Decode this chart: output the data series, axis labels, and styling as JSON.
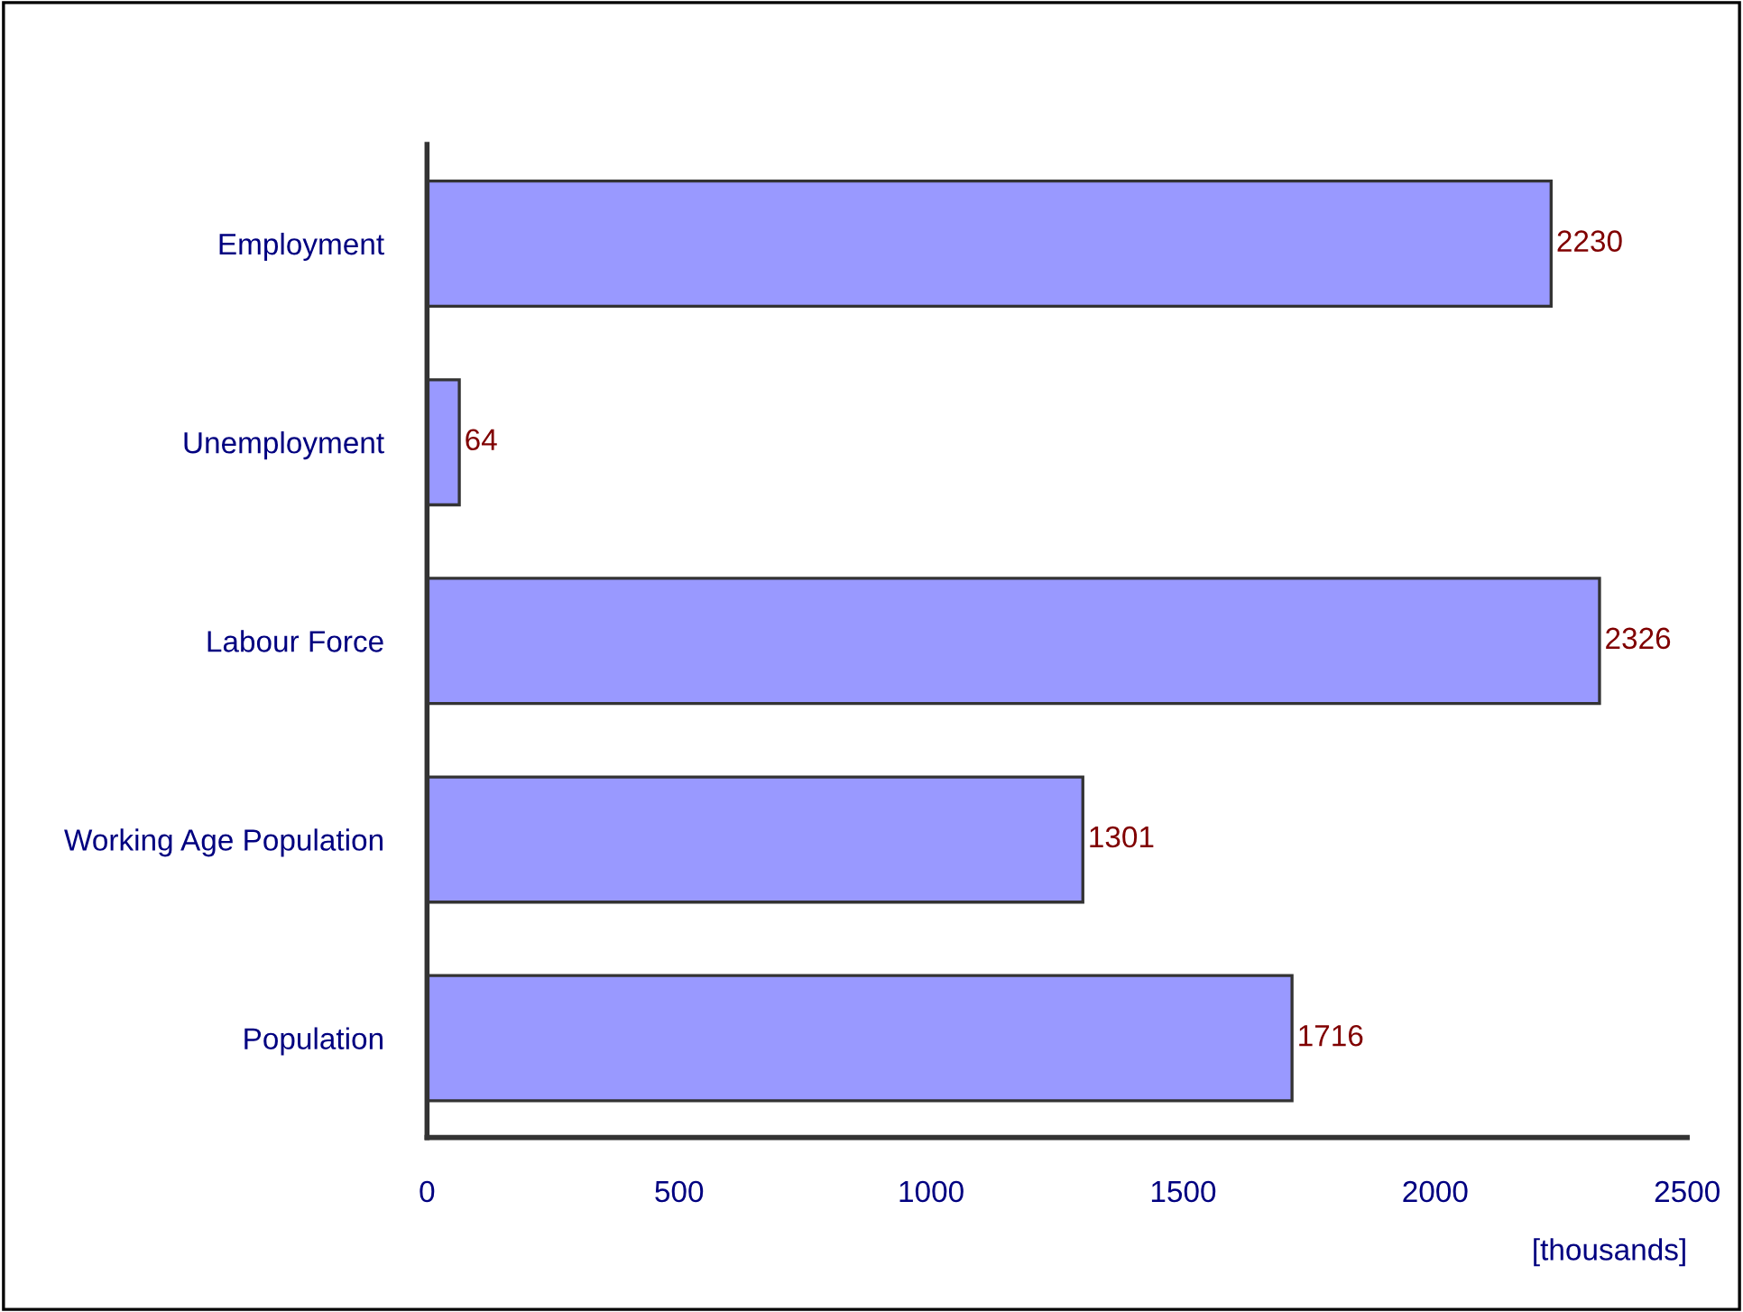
{
  "chart_data": {
    "type": "bar",
    "orientation": "horizontal",
    "xlabel": "[thousands]",
    "categories": [
      "Employment",
      "Unemployment",
      "Labour Force",
      "Working Age Population",
      "Population"
    ],
    "values": [
      2230,
      64,
      2326,
      1301,
      1716
    ],
    "color": "#9999ff",
    "xlim": [
      0,
      2500
    ],
    "xticks": [
      0,
      500,
      1000,
      1500,
      2000,
      2500
    ],
    "data_labels": true,
    "grid": false,
    "legend": false
  }
}
